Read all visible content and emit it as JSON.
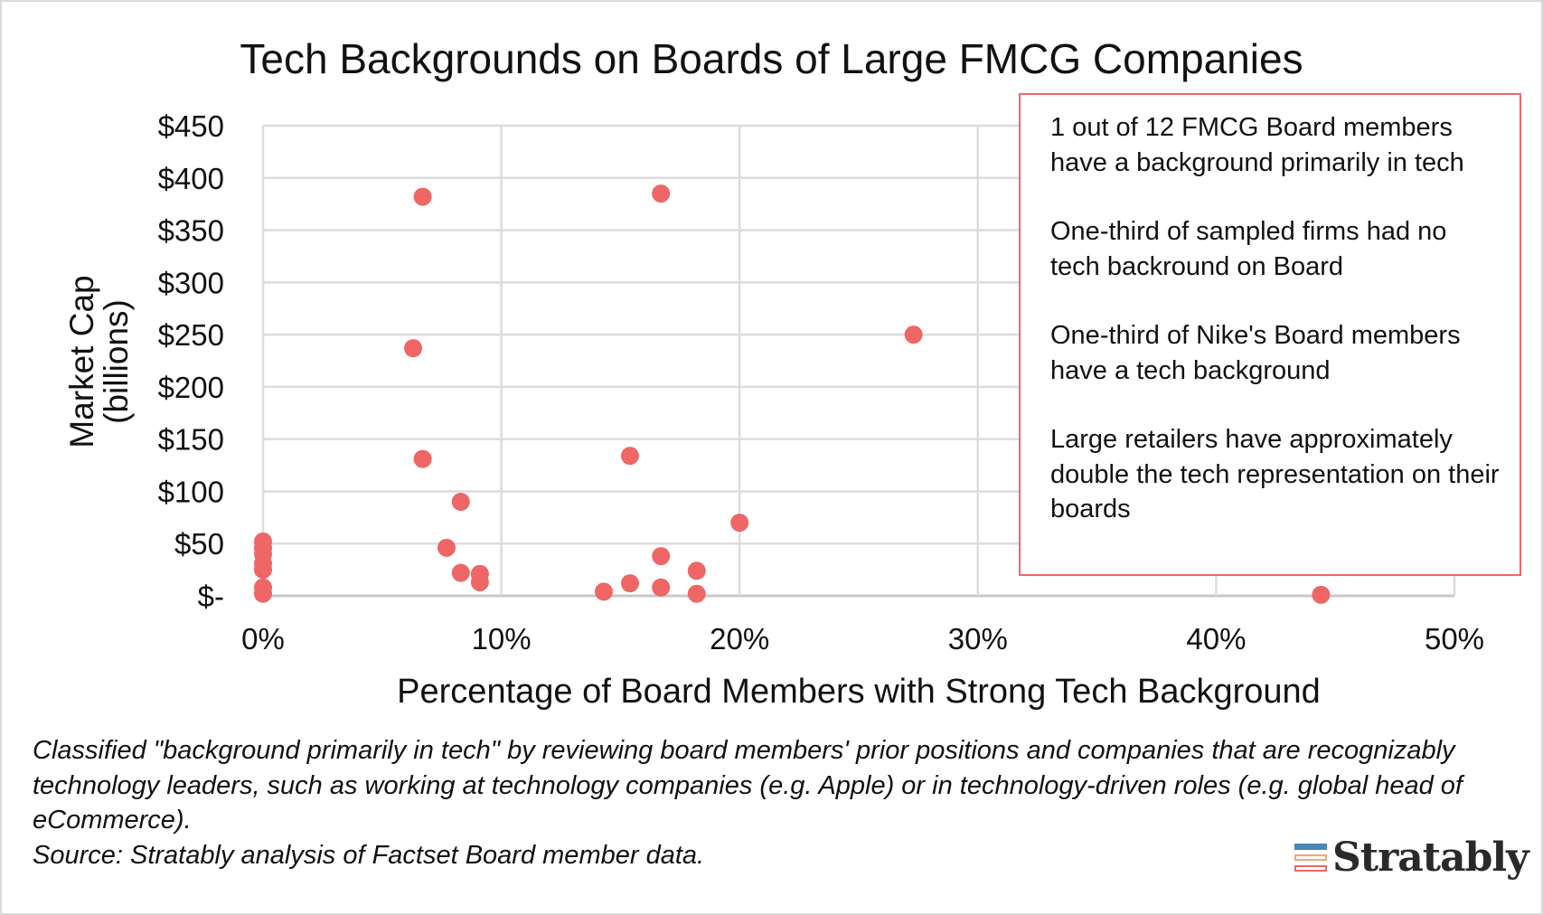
{
  "chart_data": {
    "type": "scatter",
    "title": "Tech Backgrounds on Boards of Large FMCG Companies",
    "xlabel": "Percentage of Board Members with Strong Tech Background",
    "ylabel_line1": "Market Cap",
    "ylabel_line2": "(billions)",
    "xlim": [
      0,
      50
    ],
    "ylim": [
      0,
      450
    ],
    "x_ticks": [
      0,
      10,
      20,
      30,
      40,
      50
    ],
    "x_tick_labels": [
      "0%",
      "10%",
      "20%",
      "30%",
      "40%",
      "50%"
    ],
    "y_ticks": [
      0,
      50,
      100,
      150,
      200,
      250,
      300,
      350,
      400,
      450
    ],
    "y_tick_labels": [
      "$-",
      "$50",
      "$100",
      "$150",
      "$200",
      "$250",
      "$300",
      "$350",
      "$400",
      "$450"
    ],
    "grid": true,
    "marker_color": "#ee6666",
    "points": [
      {
        "x": 0,
        "y": 52
      },
      {
        "x": 0,
        "y": 46
      },
      {
        "x": 0,
        "y": 40
      },
      {
        "x": 0,
        "y": 31
      },
      {
        "x": 0,
        "y": 25
      },
      {
        "x": 0,
        "y": 8
      },
      {
        "x": 0,
        "y": 2
      },
      {
        "x": 6.7,
        "y": 382
      },
      {
        "x": 16.7,
        "y": 385
      },
      {
        "x": 6.3,
        "y": 237
      },
      {
        "x": 27.3,
        "y": 250
      },
      {
        "x": 6.7,
        "y": 131
      },
      {
        "x": 15.4,
        "y": 134
      },
      {
        "x": 8.3,
        "y": 90
      },
      {
        "x": 20.0,
        "y": 70
      },
      {
        "x": 7.7,
        "y": 46
      },
      {
        "x": 16.7,
        "y": 38
      },
      {
        "x": 8.3,
        "y": 22
      },
      {
        "x": 9.1,
        "y": 21
      },
      {
        "x": 9.1,
        "y": 13
      },
      {
        "x": 18.2,
        "y": 24
      },
      {
        "x": 15.4,
        "y": 12
      },
      {
        "x": 14.3,
        "y": 4
      },
      {
        "x": 16.7,
        "y": 8
      },
      {
        "x": 18.2,
        "y": 2
      },
      {
        "x": 44.4,
        "y": 1
      }
    ],
    "annotations": [
      "1 out of 12 FMCG Board members have a background primarily in tech",
      "One-third of sampled firms had no tech backround on Board",
      "One-third of Nike's Board members have a tech background",
      "Large retailers have approximately double the tech representation on their boards"
    ]
  },
  "footnote": {
    "note": "Classified \"background primarily in tech\" by reviewing board members' prior positions and companies that are recognizably technology leaders, such as working at technology companies (e.g. Apple) or in technology-driven roles (e.g. global head of eCommerce).",
    "source": "Source: Stratably analysis of Factset Board member data."
  },
  "logo": {
    "text": "Stratably",
    "colors": [
      "#4a86b4",
      "#f4a672",
      "#ee6666"
    ]
  }
}
